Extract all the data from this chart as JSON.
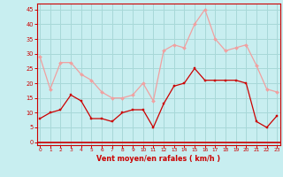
{
  "x": [
    0,
    1,
    2,
    3,
    4,
    5,
    6,
    7,
    8,
    9,
    10,
    11,
    12,
    13,
    14,
    15,
    16,
    17,
    18,
    19,
    20,
    21,
    22,
    23
  ],
  "wind_avg": [
    8,
    10,
    11,
    16,
    14,
    8,
    8,
    7,
    10,
    11,
    11,
    5,
    13,
    19,
    20,
    25,
    21,
    21,
    21,
    21,
    20,
    7,
    5,
    9
  ],
  "wind_gust": [
    29,
    18,
    27,
    27,
    23,
    21,
    17,
    15,
    15,
    16,
    20,
    14,
    31,
    33,
    32,
    40,
    45,
    35,
    31,
    32,
    33,
    26,
    18,
    17
  ],
  "avg_color": "#cc0000",
  "gust_color": "#f0a0a0",
  "bg_color": "#c8eef0",
  "grid_color": "#a8d8d8",
  "axis_color": "#cc0000",
  "xlabel": "Vent moyen/en rafales ( km/h )",
  "yticks": [
    0,
    5,
    10,
    15,
    20,
    25,
    30,
    35,
    40,
    45
  ],
  "xticks": [
    0,
    1,
    2,
    3,
    4,
    5,
    6,
    7,
    8,
    9,
    10,
    11,
    12,
    13,
    14,
    15,
    16,
    17,
    18,
    19,
    20,
    21,
    22,
    23
  ],
  "ylim": [
    -1,
    47
  ],
  "xlim": [
    -0.3,
    23.3
  ]
}
